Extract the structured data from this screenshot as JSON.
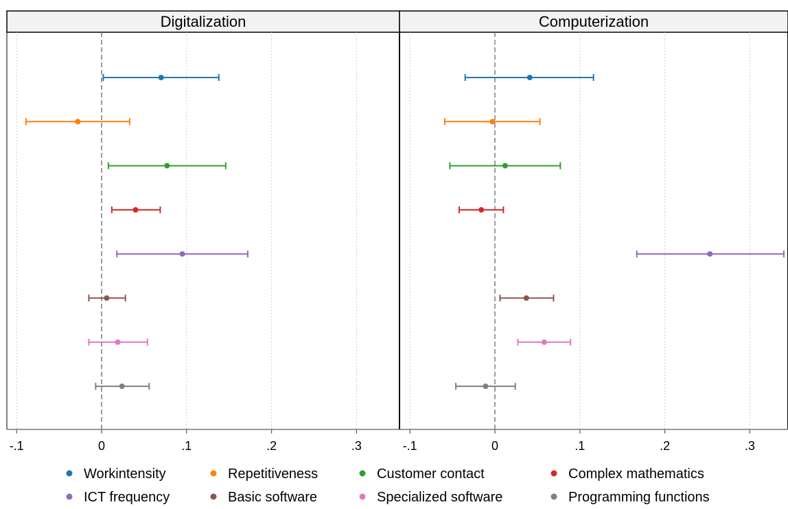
{
  "chart_data": {
    "type": "scatter",
    "subtype": "coefficient-plot-with-confidence-intervals",
    "legend_position": "bottom",
    "grid": "vertical-dotted",
    "reference_line": 0,
    "xlim": [
      -0.11,
      0.345
    ],
    "x_ticks": [
      -0.1,
      0,
      0.1,
      0.2,
      0.3
    ],
    "x_tick_labels": [
      "-.1",
      "0",
      ".1",
      ".2",
      ".3"
    ],
    "series": [
      {
        "name": "Workintensity",
        "color": "#1f77b4"
      },
      {
        "name": "Repetitiveness",
        "color": "#ff7f0e"
      },
      {
        "name": "Customer contact",
        "color": "#2ca02c"
      },
      {
        "name": "Complex mathematics",
        "color": "#d62728"
      },
      {
        "name": "ICT frequency",
        "color": "#9467bd"
      },
      {
        "name": "Basic software",
        "color": "#8c564b"
      },
      {
        "name": "Specialized software",
        "color": "#e377c2"
      },
      {
        "name": "Programming functions",
        "color": "#7f7f7f"
      }
    ],
    "panels": [
      {
        "title": "Digitalization",
        "points": [
          {
            "estimate": 0.07,
            "ci_low": 0.002,
            "ci_high": 0.138
          },
          {
            "estimate": -0.028,
            "ci_low": -0.089,
            "ci_high": 0.033
          },
          {
            "estimate": 0.077,
            "ci_low": 0.008,
            "ci_high": 0.146
          },
          {
            "estimate": 0.04,
            "ci_low": 0.012,
            "ci_high": 0.069
          },
          {
            "estimate": 0.095,
            "ci_low": 0.018,
            "ci_high": 0.172
          },
          {
            "estimate": 0.006,
            "ci_low": -0.015,
            "ci_high": 0.028
          },
          {
            "estimate": 0.019,
            "ci_low": -0.015,
            "ci_high": 0.054
          },
          {
            "estimate": 0.024,
            "ci_low": -0.007,
            "ci_high": 0.056
          }
        ]
      },
      {
        "title": "Computerization",
        "points": [
          {
            "estimate": 0.041,
            "ci_low": -0.035,
            "ci_high": 0.116
          },
          {
            "estimate": -0.003,
            "ci_low": -0.059,
            "ci_high": 0.053
          },
          {
            "estimate": 0.012,
            "ci_low": -0.053,
            "ci_high": 0.077
          },
          {
            "estimate": -0.016,
            "ci_low": -0.042,
            "ci_high": 0.01
          },
          {
            "estimate": 0.253,
            "ci_low": 0.167,
            "ci_high": 0.34
          },
          {
            "estimate": 0.037,
            "ci_low": 0.006,
            "ci_high": 0.069
          },
          {
            "estimate": 0.058,
            "ci_low": 0.027,
            "ci_high": 0.089
          },
          {
            "estimate": -0.011,
            "ci_low": -0.046,
            "ci_high": 0.024
          }
        ]
      }
    ]
  }
}
